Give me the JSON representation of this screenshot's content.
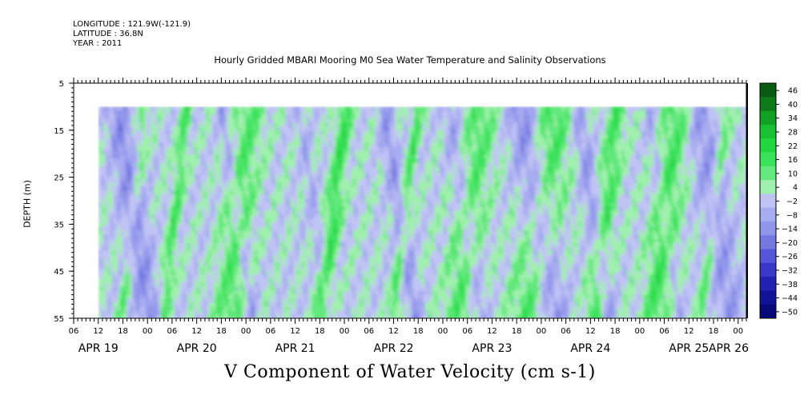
{
  "header": {
    "longitude": "LONGITUDE : 121.9W(-121.9)",
    "latitude": "LATITUDE : 36.8N",
    "year": "YEAR : 2011"
  },
  "chart_data": {
    "type": "heatmap",
    "title": "Hourly Gridded MBARI Mooring M0 Sea Water Temperature and Salinity Observations",
    "xlabel": "V Component of Water Velocity (cm s-1)",
    "ylabel": "DEPTH (m)",
    "y_ticks": [
      5,
      15,
      25,
      35,
      45,
      55
    ],
    "ylim": [
      55,
      5
    ],
    "data_depth_range": [
      10,
      55
    ],
    "x_hour_ticks": [
      "06",
      "12",
      "18",
      "00",
      "06",
      "12",
      "18",
      "00",
      "06",
      "12",
      "18",
      "00",
      "06",
      "12",
      "18",
      "00",
      "06",
      "12",
      "18",
      "00",
      "06",
      "12",
      "18",
      "00",
      "06",
      "12",
      "18",
      "00",
      "06",
      "12",
      "18",
      "00"
    ],
    "x_date_labels": [
      "APR 19",
      "APR 20",
      "APR 21",
      "APR 22",
      "APR 23",
      "APR 24",
      "APR 25",
      "APR 26"
    ],
    "x_start": "2011-04-19 06:00",
    "x_end": "2011-04-26 02:00",
    "data_start": "2011-04-19 12:00",
    "colorbar": {
      "levels": [
        46,
        40,
        34,
        28,
        22,
        16,
        10,
        4,
        -2,
        -8,
        -14,
        -20,
        -26,
        -32,
        -38,
        -44,
        -50
      ],
      "colors": {
        "46": "#0a5a12",
        "40": "#0e7a1a",
        "34": "#12a025",
        "28": "#18c032",
        "22": "#22d640",
        "16": "#3ae25a",
        "10": "#62e87c",
        "4": "#a0f0ae",
        "-2": "#c0c4f4",
        "-8": "#a8acf0",
        "-14": "#9296ea",
        "-20": "#7678e2",
        "-26": "#5656d8",
        "-32": "#3838c8",
        "-38": "#2222b0",
        "-44": "#121296",
        "-50": "#080878"
      }
    }
  }
}
